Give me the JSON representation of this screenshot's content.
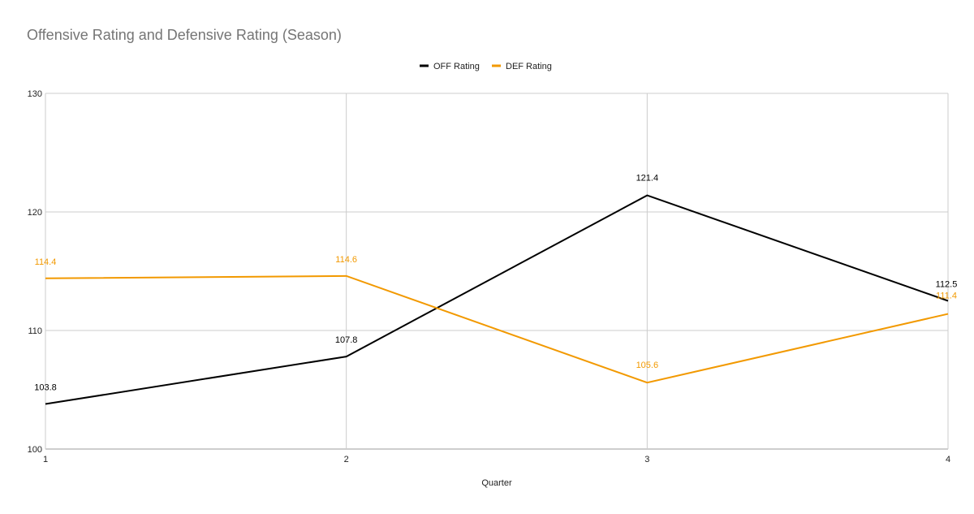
{
  "chart_data": {
    "type": "line",
    "title": "Offensive Rating and Defensive Rating (Season)",
    "xlabel": "Quarter",
    "ylabel": "",
    "categories": [
      "1",
      "2",
      "3",
      "4"
    ],
    "x": [
      1,
      2,
      3,
      4
    ],
    "ylim": [
      100,
      130
    ],
    "yticks": [
      "100",
      "110",
      "120",
      "130"
    ],
    "grid": true,
    "legend": "top-center",
    "series": [
      {
        "name": "OFF Rating",
        "color": "#000000",
        "values": [
          103.8,
          107.8,
          121.4,
          112.5
        ],
        "labels": [
          "103.8",
          "107.8",
          "121.4",
          "112.5"
        ]
      },
      {
        "name": "DEF Rating",
        "color": "#f29900",
        "values": [
          114.4,
          114.6,
          105.6,
          111.4
        ],
        "labels": [
          "114.4",
          "114.6",
          "105.6",
          "111.4"
        ]
      }
    ]
  }
}
